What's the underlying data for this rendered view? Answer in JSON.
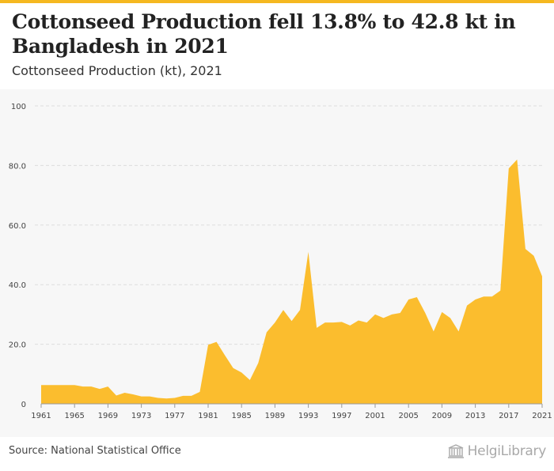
{
  "header": {
    "title": "Cottonseed Production fell 13.8% to 42.8 kt in Bangladesh in 2021",
    "subtitle": "Cottonseed Production (kt), 2021"
  },
  "footer": {
    "source": "Source: National Statistical Office",
    "logo_text": "HelgiLibrary",
    "logo_icon": "library-building-icon"
  },
  "colors": {
    "accent": "#f5b820",
    "area_fill": "#fbbd2e",
    "plot_background": "#f7f7f7",
    "grid": "#dddddd"
  },
  "chart_data": {
    "type": "area",
    "title": "",
    "xlabel": "",
    "ylabel": "",
    "grid": "horizontal dashed",
    "legend": "none",
    "xlim": [
      1961,
      2021
    ],
    "ylim": [
      0,
      100
    ],
    "y_ticks": [
      "0",
      "20.0",
      "40.0",
      "60.0",
      "80.0",
      "100"
    ],
    "x_ticks": [
      "1961",
      "1965",
      "1969",
      "1973",
      "1977",
      "1981",
      "1985",
      "1989",
      "1993",
      "1997",
      "2001",
      "2005",
      "2009",
      "2013",
      "2017",
      "2021"
    ],
    "x": [
      1961,
      1962,
      1963,
      1964,
      1965,
      1966,
      1967,
      1968,
      1969,
      1970,
      1971,
      1972,
      1973,
      1974,
      1975,
      1976,
      1977,
      1978,
      1979,
      1980,
      1981,
      1982,
      1983,
      1984,
      1985,
      1986,
      1987,
      1988,
      1989,
      1990,
      1991,
      1992,
      1993,
      1994,
      1995,
      1996,
      1997,
      1998,
      1999,
      2000,
      2001,
      2002,
      2003,
      2004,
      2005,
      2006,
      2007,
      2008,
      2009,
      2010,
      2011,
      2012,
      2013,
      2014,
      2015,
      2016,
      2017,
      2018,
      2019,
      2020,
      2021
    ],
    "series": [
      {
        "values": [
          6.3,
          6.3,
          6.3,
          6.3,
          6.3,
          5.8,
          5.8,
          5.0,
          5.8,
          2.8,
          3.7,
          3.2,
          2.5,
          2.5,
          2.0,
          1.8,
          2.0,
          2.7,
          2.7,
          4.0,
          19.8,
          20.8,
          16.3,
          12.0,
          10.5,
          8.0,
          13.7,
          24.0,
          27.3,
          31.5,
          27.8,
          31.5,
          51.0,
          25.5,
          27.3,
          27.3,
          27.5,
          26.3,
          28.0,
          27.3,
          30.0,
          28.8,
          30.0,
          30.5,
          35.0,
          35.8,
          30.5,
          24.3,
          30.8,
          28.8,
          24.3,
          33.0,
          35.0,
          36.0,
          36.0,
          38.0,
          79.0,
          82.0,
          52.0,
          49.7,
          42.8
        ]
      }
    ]
  }
}
